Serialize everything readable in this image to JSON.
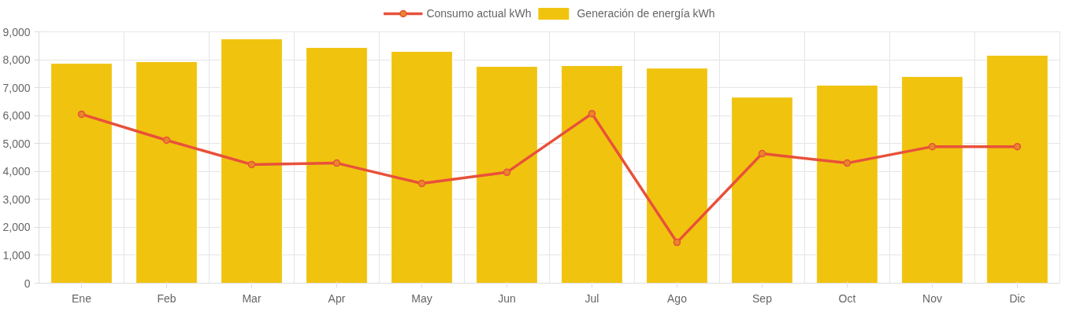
{
  "chart_data": {
    "type": "bar",
    "categories": [
      "Ene",
      "Feb",
      "Mar",
      "Apr",
      "May",
      "Jun",
      "Jul",
      "Ago",
      "Sep",
      "Oct",
      "Nov",
      "Dic"
    ],
    "series": [
      {
        "name": "Consumo actual kWh",
        "type": "line",
        "color": "#e8513a",
        "values": [
          6050,
          5120,
          4250,
          4300,
          3570,
          3970,
          6070,
          1460,
          4640,
          4300,
          4890,
          4890
        ]
      },
      {
        "name": "Generación de energía kWh",
        "type": "bar",
        "color": "#f0c30f",
        "values": [
          7870,
          7930,
          8750,
          8440,
          8300,
          7760,
          7790,
          7700,
          6660,
          7090,
          7400,
          8160
        ]
      }
    ],
    "ylim": [
      0,
      9000
    ],
    "yticks": [
      {
        "value": 0,
        "label": "0"
      },
      {
        "value": 1000,
        "label": "1,000"
      },
      {
        "value": 2000,
        "label": "2,000"
      },
      {
        "value": 3000,
        "label": "3,000"
      },
      {
        "value": 4000,
        "label": "4,000"
      },
      {
        "value": 5000,
        "label": "5,000"
      },
      {
        "value": 6000,
        "label": "6,000"
      },
      {
        "value": 7000,
        "label": "7,000"
      },
      {
        "value": 8000,
        "label": "8,000"
      },
      {
        "value": 9000,
        "label": "9,000"
      }
    ],
    "grid": true,
    "legend": "top",
    "marker": "circle",
    "line_style": "solid"
  }
}
